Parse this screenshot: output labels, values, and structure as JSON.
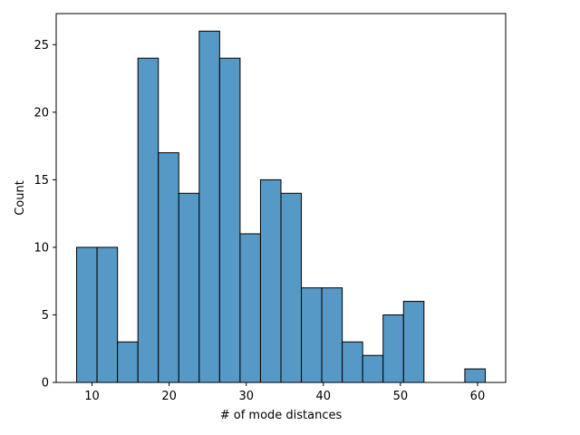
{
  "chart_data": {
    "type": "bar",
    "title": "",
    "xlabel": "# of mode distances",
    "ylabel": "Count",
    "xlim": [
      5.35,
      63.65
    ],
    "ylim": [
      0,
      27.3
    ],
    "xticks": [
      10,
      20,
      30,
      40,
      50,
      60
    ],
    "yticks": [
      0,
      5,
      10,
      15,
      20,
      25
    ],
    "bins": [
      {
        "x0": 8.0,
        "x1": 10.65,
        "count": 10
      },
      {
        "x0": 10.65,
        "x1": 13.3,
        "count": 10
      },
      {
        "x0": 13.3,
        "x1": 15.95,
        "count": 3
      },
      {
        "x0": 15.95,
        "x1": 18.6,
        "count": 24
      },
      {
        "x0": 18.6,
        "x1": 21.25,
        "count": 17
      },
      {
        "x0": 21.25,
        "x1": 23.9,
        "count": 14
      },
      {
        "x0": 23.9,
        "x1": 26.55,
        "count": 26
      },
      {
        "x0": 26.55,
        "x1": 29.2,
        "count": 24
      },
      {
        "x0": 29.2,
        "x1": 31.85,
        "count": 11
      },
      {
        "x0": 31.85,
        "x1": 34.5,
        "count": 15
      },
      {
        "x0": 34.5,
        "x1": 37.15,
        "count": 14
      },
      {
        "x0": 37.15,
        "x1": 39.8,
        "count": 7
      },
      {
        "x0": 39.8,
        "x1": 42.45,
        "count": 7
      },
      {
        "x0": 42.45,
        "x1": 45.1,
        "count": 3
      },
      {
        "x0": 45.1,
        "x1": 47.75,
        "count": 2
      },
      {
        "x0": 47.75,
        "x1": 50.4,
        "count": 5
      },
      {
        "x0": 50.4,
        "x1": 53.05,
        "count": 6
      },
      {
        "x0": 53.05,
        "x1": 55.7,
        "count": 0
      },
      {
        "x0": 55.7,
        "x1": 58.35,
        "count": 0
      },
      {
        "x0": 58.35,
        "x1": 61.0,
        "count": 1
      }
    ],
    "bar_color": "#5699c6",
    "edge_color": "#000000"
  }
}
